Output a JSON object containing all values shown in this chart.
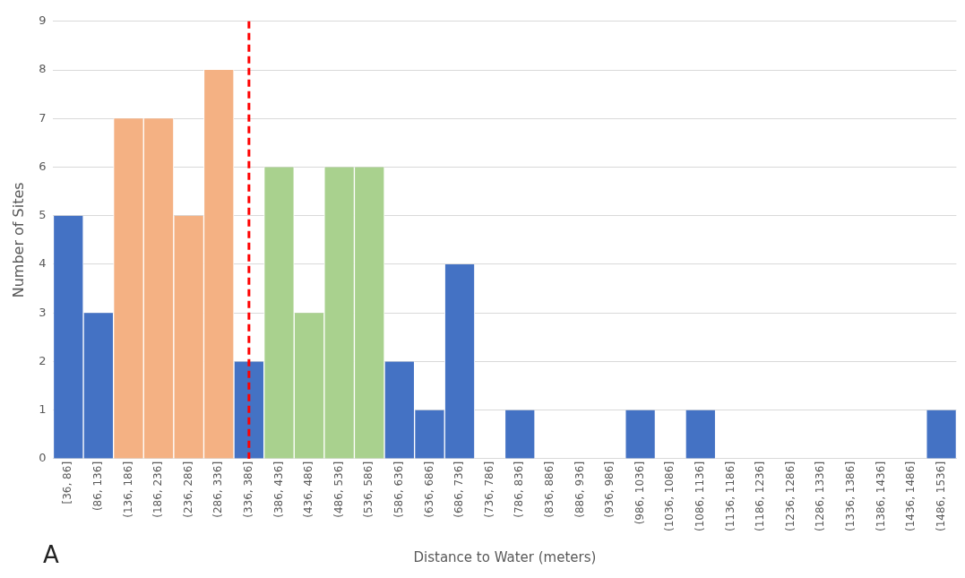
{
  "chart_data": {
    "type": "bar",
    "xlabel": "Distance to Water (meters)",
    "ylabel": "Number of Sites",
    "categories": [
      "[36, 86]",
      "(86, 136]",
      "(136, 186]",
      "(186, 236]",
      "(236, 286]",
      "(286, 336]",
      "(336, 386]",
      "(386, 436]",
      "(436, 486]",
      "(486, 536]",
      "(536, 586]",
      "(586, 636]",
      "(636, 686]",
      "(686, 736]",
      "(736, 786]",
      "(786, 836]",
      "(836, 886]",
      "(886, 936]",
      "(936, 986]",
      "(986, 1036]",
      "(1036, 1086]",
      "(1086, 1136]",
      "(1136, 1186]",
      "(1186, 1236]",
      "(1236, 1286]",
      "(1286, 1336]",
      "(1336, 1386]",
      "(1386, 1436]",
      "(1436, 1486]",
      "(1486, 1536]"
    ],
    "values": [
      5,
      3,
      7,
      7,
      5,
      8,
      2,
      6,
      3,
      6,
      6,
      2,
      1,
      4,
      0,
      1,
      0,
      0,
      0,
      1,
      0,
      1,
      0,
      0,
      0,
      0,
      0,
      0,
      0,
      1
    ],
    "colors": [
      "#4472c4",
      "#4472c4",
      "#f4b183",
      "#f4b183",
      "#f4b183",
      "#f4b183",
      "#4472c4",
      "#a9d18e",
      "#a9d18e",
      "#a9d18e",
      "#a9d18e",
      "#4472c4",
      "#4472c4",
      "#4472c4",
      "#4472c4",
      "#4472c4",
      "#4472c4",
      "#4472c4",
      "#4472c4",
      "#4472c4",
      "#4472c4",
      "#4472c4",
      "#4472c4",
      "#4472c4",
      "#4472c4",
      "#4472c4",
      "#4472c4",
      "#4472c4",
      "#4472c4",
      "#4472c4"
    ],
    "ylim": [
      0,
      9
    ],
    "yticks": [
      0,
      1,
      2,
      3,
      4,
      5,
      6,
      7,
      8,
      9
    ],
    "grid": "y",
    "legend": false,
    "ref_lines": [
      {
        "axis": "x",
        "value": "(336, 386]",
        "color": "#ff0000",
        "line_style": "dashed"
      }
    ],
    "annotations": [
      "A"
    ]
  }
}
